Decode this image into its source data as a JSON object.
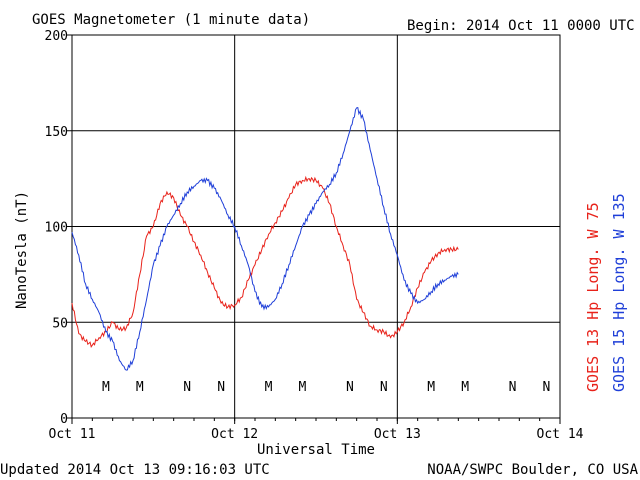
{
  "title": "GOES Magnetometer (1 minute data)",
  "begin": "Begin:  2014 Oct 11 0000 UTC",
  "updated": "Updated 2014 Oct 13 09:16:03 UTC",
  "credit": "NOAA/SWPC Boulder, CO USA",
  "colors": {
    "goes13": "#e8221a",
    "goes15": "#1f3fd8",
    "axis": "#000000"
  },
  "chart_data": {
    "type": "line",
    "title": "GOES Magnetometer (1 minute data)",
    "xlabel": "Universal Time",
    "ylabel": "NanoTesla (nT)",
    "xlim": [
      "2014-10-11T00:00",
      "2014-10-14T00:00"
    ],
    "ylim": [
      0,
      200
    ],
    "yticks": [
      0,
      50,
      100,
      150,
      200
    ],
    "xtick_labels": [
      "Oct 11",
      "Oct 12",
      "Oct 13",
      "Oct 14"
    ],
    "grid": true,
    "legend_placement": "right, vertical",
    "series": [
      {
        "name": "GOES 13 Hp  Long. W 75",
        "color": "#e8221a",
        "x": [
          "2014-10-11T00:00",
          "2014-10-11T01:00",
          "2014-10-11T02:00",
          "2014-10-11T03:00",
          "2014-10-11T04:00",
          "2014-10-11T05:00",
          "2014-10-11T06:00",
          "2014-10-11T07:00",
          "2014-10-11T08:00",
          "2014-10-11T09:00",
          "2014-10-11T10:00",
          "2014-10-11T11:00",
          "2014-10-11T12:00",
          "2014-10-11T13:00",
          "2014-10-11T14:00",
          "2014-10-11T15:00",
          "2014-10-11T16:00",
          "2014-10-11T17:00",
          "2014-10-11T18:00",
          "2014-10-11T19:00",
          "2014-10-11T20:00",
          "2014-10-11T21:00",
          "2014-10-11T22:00",
          "2014-10-11T23:00",
          "2014-10-12T00:00",
          "2014-10-12T01:00",
          "2014-10-12T02:00",
          "2014-10-12T03:00",
          "2014-10-12T04:00",
          "2014-10-12T05:00",
          "2014-10-12T06:00",
          "2014-10-12T07:00",
          "2014-10-12T08:00",
          "2014-10-12T09:00",
          "2014-10-12T10:00",
          "2014-10-12T11:00",
          "2014-10-12T12:00",
          "2014-10-12T13:00",
          "2014-10-12T14:00",
          "2014-10-12T15:00",
          "2014-10-12T16:00",
          "2014-10-12T17:00",
          "2014-10-12T18:00",
          "2014-10-12T19:00",
          "2014-10-12T20:00",
          "2014-10-12T21:00",
          "2014-10-12T22:00",
          "2014-10-12T23:00",
          "2014-10-13T00:00",
          "2014-10-13T01:00",
          "2014-10-13T02:00",
          "2014-10-13T03:00",
          "2014-10-13T04:00",
          "2014-10-13T05:00",
          "2014-10-13T06:00",
          "2014-10-13T07:00",
          "2014-10-13T08:00",
          "2014-10-13T09:00"
        ],
        "values": [
          60,
          44,
          40,
          38,
          42,
          45,
          50,
          46,
          47,
          55,
          75,
          95,
          100,
          112,
          118,
          115,
          106,
          100,
          92,
          85,
          76,
          68,
          60,
          58,
          59,
          63,
          72,
          80,
          88,
          96,
          102,
          108,
          115,
          122,
          124,
          125,
          124,
          120,
          112,
          100,
          90,
          80,
          62,
          55,
          48,
          46,
          45,
          42,
          45,
          50,
          58,
          68,
          76,
          82,
          86,
          88,
          88,
          88
        ]
      },
      {
        "name": "GOES 15 Hp  Long. W 135",
        "color": "#1f3fd8",
        "x": [
          "2014-10-11T00:00",
          "2014-10-11T01:00",
          "2014-10-11T02:00",
          "2014-10-11T03:00",
          "2014-10-11T04:00",
          "2014-10-11T05:00",
          "2014-10-11T06:00",
          "2014-10-11T07:00",
          "2014-10-11T08:00",
          "2014-10-11T09:00",
          "2014-10-11T10:00",
          "2014-10-11T11:00",
          "2014-10-11T12:00",
          "2014-10-11T13:00",
          "2014-10-11T14:00",
          "2014-10-11T15:00",
          "2014-10-11T16:00",
          "2014-10-11T17:00",
          "2014-10-11T18:00",
          "2014-10-11T19:00",
          "2014-10-11T20:00",
          "2014-10-11T21:00",
          "2014-10-11T22:00",
          "2014-10-11T23:00",
          "2014-10-12T00:00",
          "2014-10-12T01:00",
          "2014-10-12T02:00",
          "2014-10-12T03:00",
          "2014-10-12T04:00",
          "2014-10-12T05:00",
          "2014-10-12T06:00",
          "2014-10-12T07:00",
          "2014-10-12T08:00",
          "2014-10-12T09:00",
          "2014-10-12T10:00",
          "2014-10-12T11:00",
          "2014-10-12T12:00",
          "2014-10-12T13:00",
          "2014-10-12T14:00",
          "2014-10-12T15:00",
          "2014-10-12T16:00",
          "2014-10-12T17:00",
          "2014-10-12T18:00",
          "2014-10-12T19:00",
          "2014-10-12T20:00",
          "2014-10-12T21:00",
          "2014-10-12T22:00",
          "2014-10-12T23:00",
          "2014-10-13T00:00",
          "2014-10-13T01:00",
          "2014-10-13T02:00",
          "2014-10-13T03:00",
          "2014-10-13T04:00",
          "2014-10-13T05:00",
          "2014-10-13T06:00",
          "2014-10-13T07:00",
          "2014-10-13T08:00",
          "2014-10-13T09:00"
        ],
        "values": [
          97,
          85,
          70,
          62,
          55,
          45,
          40,
          30,
          25,
          30,
          45,
          62,
          80,
          90,
          100,
          106,
          112,
          118,
          121,
          124,
          124,
          120,
          114,
          106,
          100,
          90,
          80,
          66,
          58,
          58,
          62,
          70,
          80,
          90,
          100,
          106,
          112,
          118,
          122,
          128,
          138,
          150,
          162,
          156,
          140,
          125,
          110,
          96,
          85,
          72,
          65,
          60,
          62,
          66,
          70,
          72,
          74,
          75
        ]
      }
    ],
    "markers": {
      "goes13": [
        "M",
        "N",
        "M",
        "N",
        "M",
        "N"
      ],
      "goes15": [
        "M",
        "N",
        "M",
        "N",
        "M",
        "N"
      ]
    }
  }
}
